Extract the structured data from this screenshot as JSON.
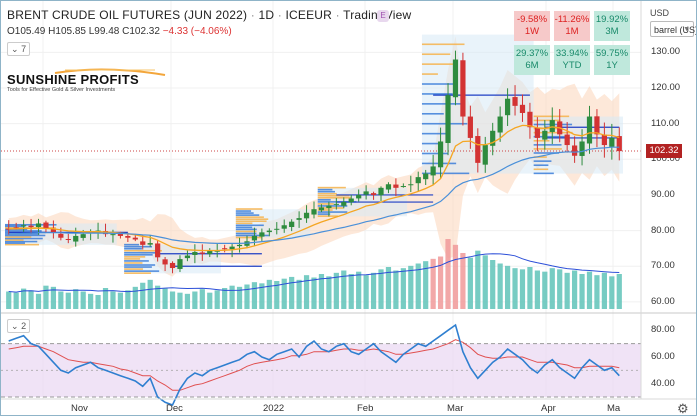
{
  "header": {
    "symbol": "BRENT CRUDE OIL FUTURES (JUN 2022)",
    "interval": "1D",
    "exchange": "ICEEUR",
    "platform": "TradingView",
    "flag": "E"
  },
  "ohlc": {
    "open": "O105.49",
    "high": "H105.85",
    "low": "L99.48",
    "close": "C102.32",
    "change": "−4.33 (−4.06%)"
  },
  "price_pane_collapse": "7",
  "logo": {
    "name": "SUNSHINE PROFITS",
    "tagline": "Tools for Effective Gold & Silver Investments"
  },
  "performance": [
    {
      "value": "-9.58%",
      "period": "1W",
      "tone": "red"
    },
    {
      "value": "-11.26%",
      "period": "1M",
      "tone": "red"
    },
    {
      "value": "19.92%",
      "period": "3M",
      "tone": "green"
    },
    {
      "value": "29.37%",
      "period": "6M",
      "tone": "green"
    },
    {
      "value": "33.94%",
      "period": "YTD",
      "tone": "green"
    },
    {
      "value": "59.75%",
      "period": "1Y",
      "tone": "green"
    }
  ],
  "price_scale": {
    "currency": "USD",
    "unit": "barrel (US)",
    "ticks": [
      "130.00",
      "120.00",
      "110.00",
      "100.00",
      "90.00",
      "80.00",
      "70.00",
      "60.00"
    ],
    "last_price": "102.32"
  },
  "rsi_pane_collapse": "2",
  "rsi_scale": {
    "ticks": [
      "80.00",
      "60.00",
      "40.00"
    ]
  },
  "x_axis": {
    "ticks": [
      "Nov",
      "Dec",
      "2022",
      "Feb",
      "Mar",
      "Apr",
      "Ma"
    ]
  },
  "colors": {
    "up_candle": "#2e8b3e",
    "down_candle": "#d33333",
    "ema_fast": "#f5a623",
    "ema_slow": "#4a90d9",
    "volume": "#5fc3b8",
    "volume_high": "#f09999",
    "rsi_line": "#2f7fd0",
    "rsi_signal": "#e05050",
    "rsi_band": "#ead7f2",
    "band_fill": "#fbd9c0"
  },
  "chart_data": {
    "type": "candlestick",
    "title": "BRENT CRUDE OIL FUTURES (JUN 2022)",
    "x_ticks": [
      "Nov",
      "Dec",
      "2022",
      "Feb",
      "Mar",
      "Apr",
      "Ma"
    ],
    "ylim": [
      58,
      136
    ],
    "close_path": [
      80.5,
      80.8,
      81.5,
      81,
      82,
      80.5,
      79.5,
      78,
      77.5,
      78.5,
      79,
      79.5,
      80,
      79,
      79,
      78.5,
      78,
      77.5,
      76,
      76.5,
      72.5,
      70.5,
      69.5,
      72,
      73,
      74,
      73.5,
      74.5,
      74.5,
      75,
      75.5,
      76,
      77,
      78.5,
      79.5,
      80,
      80.5,
      81.5,
      82.5,
      83.5,
      85,
      86,
      86.5,
      87,
      87.5,
      88,
      89,
      90,
      91,
      90,
      92,
      93,
      92,
      92.5,
      93,
      95,
      96,
      98,
      105,
      118,
      128,
      112,
      106,
      99,
      104,
      108,
      112,
      117,
      115,
      113,
      109,
      106,
      108,
      111,
      107,
      104,
      101,
      105,
      112,
      107,
      104,
      106,
      102.3
    ],
    "fast_ema": [
      80.5,
      80.5,
      80.6,
      80.6,
      80.7,
      80.6,
      80.5,
      80.2,
      79.9,
      79.8,
      79.7,
      79.7,
      79.7,
      79.6,
      79.5,
      79.3,
      79.1,
      78.8,
      78.4,
      78.1,
      77.3,
      76.3,
      75.3,
      74.9,
      74.6,
      74.5,
      74.4,
      74.4,
      74.4,
      74.5,
      74.6,
      74.9,
      75.2,
      75.7,
      76.3,
      76.9,
      77.5,
      78.2,
      79,
      79.8,
      80.7,
      81.6,
      82.4,
      83.1,
      83.8,
      84.5,
      85.3,
      86,
      86.9,
      87.3,
      88,
      88.8,
      89.3,
      89.8,
      90.3,
      91,
      91.8,
      92.8,
      94.6,
      98.6,
      103.7,
      105,
      105.1,
      104.1,
      104.1,
      104.7,
      105.9,
      107.7,
      108.8,
      109.5,
      109.4,
      108.8,
      108.7,
      109.1,
      108.8,
      108,
      106.9,
      106.6,
      107.4,
      107.4,
      106.8,
      106.7,
      106.1
    ],
    "slow_ema": [
      79,
      79.1,
      79.2,
      79.3,
      79.4,
      79.4,
      79.4,
      79.4,
      79.3,
      79.3,
      79.3,
      79.3,
      79.3,
      79.3,
      79.2,
      79.2,
      79.1,
      79,
      78.8,
      78.7,
      78.3,
      77.9,
      77.4,
      77.1,
      76.9,
      76.7,
      76.6,
      76.5,
      76.4,
      76.4,
      76.4,
      76.4,
      76.5,
      76.7,
      76.9,
      77.1,
      77.3,
      77.6,
      77.9,
      78.3,
      78.7,
      79.1,
      79.6,
      80,
      80.5,
      80.9,
      81.4,
      81.9,
      82.5,
      82.9,
      83.4,
      84,
      84.4,
      84.9,
      85.3,
      85.9,
      86.5,
      87.1,
      88.2,
      90,
      92.2,
      93.4,
      94.1,
      94.4,
      95,
      95.8,
      96.8,
      98,
      99,
      99.8,
      100.4,
      100.7,
      101.1,
      101.6,
      101.9,
      102.1,
      102,
      102.2,
      102.8,
      103.1,
      103.2,
      103.4,
      103.4
    ],
    "volume_units": "relative",
    "volume": [
      30,
      28,
      35,
      32,
      26,
      40,
      38,
      30,
      28,
      34,
      30,
      26,
      24,
      36,
      30,
      28,
      32,
      38,
      45,
      50,
      40,
      35,
      30,
      28,
      26,
      30,
      34,
      28,
      32,
      36,
      40,
      38,
      42,
      46,
      44,
      50,
      48,
      52,
      55,
      50,
      58,
      54,
      60,
      56,
      62,
      66,
      60,
      64,
      58,
      62,
      68,
      72,
      66,
      70,
      74,
      78,
      82,
      86,
      90,
      120,
      110,
      96,
      88,
      100,
      92,
      84,
      78,
      74,
      70,
      68,
      72,
      66,
      64,
      70,
      68,
      62,
      66,
      60,
      64,
      58,
      62,
      56,
      60
    ],
    "rsi": [
      72,
      74,
      76,
      70,
      68,
      62,
      56,
      50,
      48,
      52,
      54,
      56,
      52,
      50,
      48,
      46,
      44,
      42,
      38,
      44,
      30,
      26,
      24,
      36,
      44,
      48,
      46,
      50,
      52,
      54,
      56,
      58,
      62,
      64,
      60,
      58,
      62,
      64,
      66,
      60,
      68,
      72,
      66,
      64,
      68,
      70,
      64,
      62,
      66,
      70,
      64,
      60,
      56,
      62,
      66,
      70,
      68,
      72,
      76,
      80,
      84,
      64,
      52,
      44,
      50,
      56,
      60,
      66,
      62,
      58,
      52,
      48,
      54,
      58,
      52,
      48,
      44,
      52,
      58,
      54,
      50,
      52,
      46
    ],
    "rsi_signal": [
      66,
      67,
      68,
      68,
      68,
      66,
      64,
      61,
      58,
      57,
      56,
      56,
      55,
      54,
      53,
      51,
      50,
      48,
      46,
      46,
      42,
      39,
      35,
      35,
      37,
      39,
      40,
      42,
      44,
      46,
      48,
      50,
      53,
      55,
      56,
      57,
      58,
      59,
      61,
      61,
      62,
      64,
      64,
      64,
      65,
      66,
      66,
      65,
      65,
      66,
      65,
      64,
      62,
      62,
      63,
      64,
      65,
      66,
      68,
      70,
      73,
      71,
      67,
      62,
      60,
      59,
      59,
      60,
      60,
      60,
      58,
      56,
      56,
      56,
      55,
      54,
      52,
      52,
      53,
      53,
      53,
      53,
      52
    ]
  }
}
